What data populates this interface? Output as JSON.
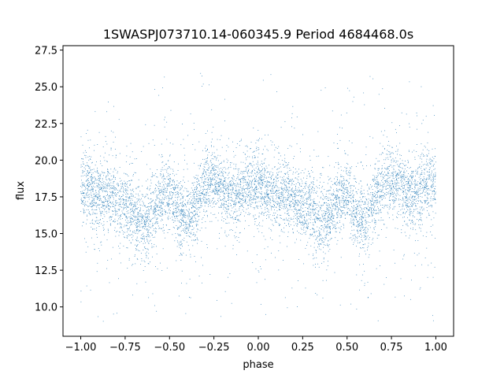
{
  "chart_data": {
    "type": "scatter",
    "title": "1SWASPJ073710.14-060345.9 Period 4684468.0s",
    "xlabel": "phase",
    "ylabel": "flux",
    "xlim": [
      -1.1,
      1.1
    ],
    "ylim": [
      8.0,
      27.8
    ],
    "xticks": [
      -1.0,
      -0.75,
      -0.5,
      -0.25,
      0.0,
      0.25,
      0.5,
      0.75,
      1.0
    ],
    "xtick_labels": [
      "−1.00",
      "−0.75",
      "−0.50",
      "−0.25",
      "0.00",
      "0.25",
      "0.50",
      "0.75",
      "1.00"
    ],
    "yticks": [
      10.0,
      12.5,
      15.0,
      17.5,
      20.0,
      22.5,
      25.0,
      27.5
    ],
    "ytick_labels": [
      "10.0",
      "12.5",
      "15.0",
      "17.5",
      "20.0",
      "22.5",
      "25.0",
      "27.5"
    ],
    "grid": false,
    "point_color": "#1f77b4",
    "phase_range": [
      -1.0,
      1.0
    ],
    "curve_phase": [
      0.0,
      0.05,
      0.1,
      0.15,
      0.2,
      0.25,
      0.3,
      0.35,
      0.4,
      0.45,
      0.5,
      0.55,
      0.6,
      0.65,
      0.7,
      0.75,
      0.8,
      0.85,
      0.9,
      0.95,
      1.0
    ],
    "curve_flux": [
      18.3,
      18.0,
      17.5,
      17.6,
      17.4,
      16.8,
      16.5,
      15.5,
      16.2,
      17.5,
      17.8,
      16.5,
      16.0,
      17.0,
      18.5,
      18.8,
      18.3,
      17.5,
      17.8,
      18.5,
      18.3
    ]
  }
}
